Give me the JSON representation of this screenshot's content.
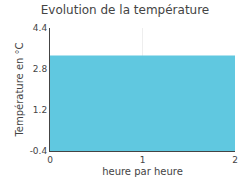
{
  "chart_data": {
    "type": "area",
    "title": "Evolution de la température",
    "xlabel": "heure par heure",
    "ylabel": "Température en °C",
    "x": [
      0,
      2
    ],
    "values": [
      3.3,
      3.3
    ],
    "color": "#60c8e0",
    "xlim": [
      0,
      2
    ],
    "ylim": [
      -0.4,
      4.4
    ],
    "xticks": [
      0,
      1,
      2
    ],
    "yticks": [
      -0.4,
      1.2,
      2.8,
      4.4
    ],
    "grid": true
  }
}
